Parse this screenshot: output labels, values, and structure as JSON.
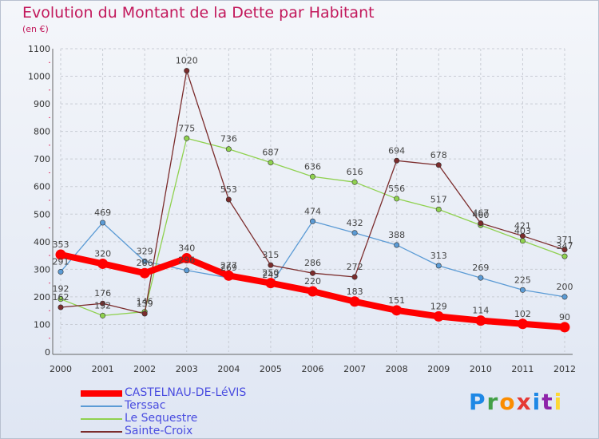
{
  "chart_data": {
    "type": "line",
    "title": "Evolution du Montant de la Dette par Habitant",
    "subtitle": "(en €)",
    "xlabel": "",
    "ylabel": "",
    "x": [
      "2000",
      "2001",
      "2002",
      "2003",
      "2004",
      "2005",
      "2006",
      "2007",
      "2008",
      "2009",
      "2010",
      "2011",
      "2012"
    ],
    "ylim": [
      0,
      1100
    ],
    "yticks": [
      0,
      100,
      200,
      300,
      400,
      500,
      600,
      700,
      800,
      900,
      1000,
      1100
    ],
    "grid": true,
    "legend_position": "bottom-left",
    "series": [
      {
        "name": "CASTELNAU-DE-LéVIS",
        "color": "#ff0000",
        "width": 8,
        "values": [
          353,
          320,
          286,
          340,
          277,
          250,
          220,
          183,
          151,
          129,
          114,
          102,
          90
        ]
      },
      {
        "name": "Terssac",
        "color": "#5b9bd5",
        "width": 1.3,
        "values": [
          291,
          469,
          329,
          296,
          269,
          243,
          474,
          432,
          388,
          313,
          269,
          225,
          200
        ]
      },
      {
        "name": "Le Sequestre",
        "color": "#8fd14f",
        "width": 1.3,
        "values": [
          192,
          132,
          146,
          775,
          736,
          687,
          636,
          616,
          556,
          517,
          460,
          403,
          347
        ]
      },
      {
        "name": "Sainte-Croix",
        "color": "#7b2c2c",
        "width": 1.3,
        "values": [
          162,
          176,
          139,
          1020,
          553,
          315,
          286,
          272,
          694,
          678,
          467,
          421,
          371
        ]
      }
    ]
  },
  "brand": [
    "P",
    "r",
    "o",
    "x",
    "i",
    "t",
    "i"
  ]
}
